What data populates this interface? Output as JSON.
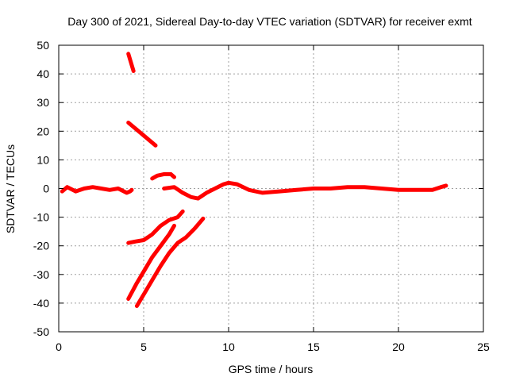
{
  "chart_data": {
    "type": "line",
    "title": "Day 300 of 2021, Sidereal Day-to-day VTEC variation (SDTVAR) for receiver exmt",
    "xlabel": "GPS time / hours",
    "ylabel": "SDTVAR / TECUs",
    "xlim": [
      0,
      25
    ],
    "ylim": [
      -50,
      50
    ],
    "xticks": [
      0,
      5,
      10,
      15,
      20,
      25
    ],
    "yticks": [
      -50,
      -40,
      -30,
      -20,
      -10,
      0,
      10,
      20,
      30,
      40,
      50
    ],
    "grid": true,
    "legend": "none",
    "series": [
      {
        "name": "main-trace",
        "x": [
          0.2,
          0.5,
          1,
          1.5,
          2,
          2.5,
          3,
          3.5,
          4,
          4.2,
          4.3
        ],
        "y": [
          -1,
          0.5,
          -1,
          0,
          0.5,
          0,
          -0.5,
          0,
          -1.5,
          -1,
          -0.5
        ]
      },
      {
        "name": "arc-46",
        "x": [
          4.1,
          4.4
        ],
        "y": [
          47,
          41
        ]
      },
      {
        "name": "arc-22",
        "x": [
          4.1,
          4.8,
          5.7
        ],
        "y": [
          23,
          19.5,
          15
        ]
      },
      {
        "name": "arc-5",
        "x": [
          5.5,
          5.8,
          6.2,
          6.6,
          6.8
        ],
        "y": [
          3.5,
          4.5,
          5,
          5,
          4
        ]
      },
      {
        "name": "arc-dip",
        "x": [
          6.2,
          6.8,
          7.3,
          7.8,
          8.2,
          8.7,
          9.2,
          9.7,
          10,
          10.5,
          11.2,
          12,
          13,
          14,
          15,
          16,
          17,
          18,
          19,
          20,
          21,
          22,
          22.5,
          22.8
        ],
        "y": [
          0,
          0.5,
          -1.5,
          -3,
          -3.5,
          -1.5,
          0,
          1.5,
          2,
          1.5,
          -0.5,
          -1.5,
          -1,
          -0.5,
          0,
          0,
          0.5,
          0.5,
          0,
          -0.5,
          -0.5,
          -0.5,
          0.5,
          1
        ]
      },
      {
        "name": "arc-neg19",
        "x": [
          4.1,
          4.5,
          5,
          5.5,
          6,
          6.5,
          7,
          7.3
        ],
        "y": [
          -19,
          -18.5,
          -18,
          -16,
          -13,
          -11,
          -10,
          -8
        ]
      },
      {
        "name": "arc-neg38",
        "x": [
          4.1,
          4.6,
          5,
          5.5,
          6,
          6.5,
          6.8
        ],
        "y": [
          -38.5,
          -33,
          -29,
          -24,
          -20,
          -16,
          -13
        ]
      },
      {
        "name": "arc-neg41",
        "x": [
          4.6,
          5,
          5.5,
          6,
          6.5,
          7,
          7.5,
          8,
          8.5
        ],
        "y": [
          -41,
          -37,
          -32,
          -27,
          -22.5,
          -19,
          -17,
          -14,
          -10.5
        ]
      }
    ]
  }
}
